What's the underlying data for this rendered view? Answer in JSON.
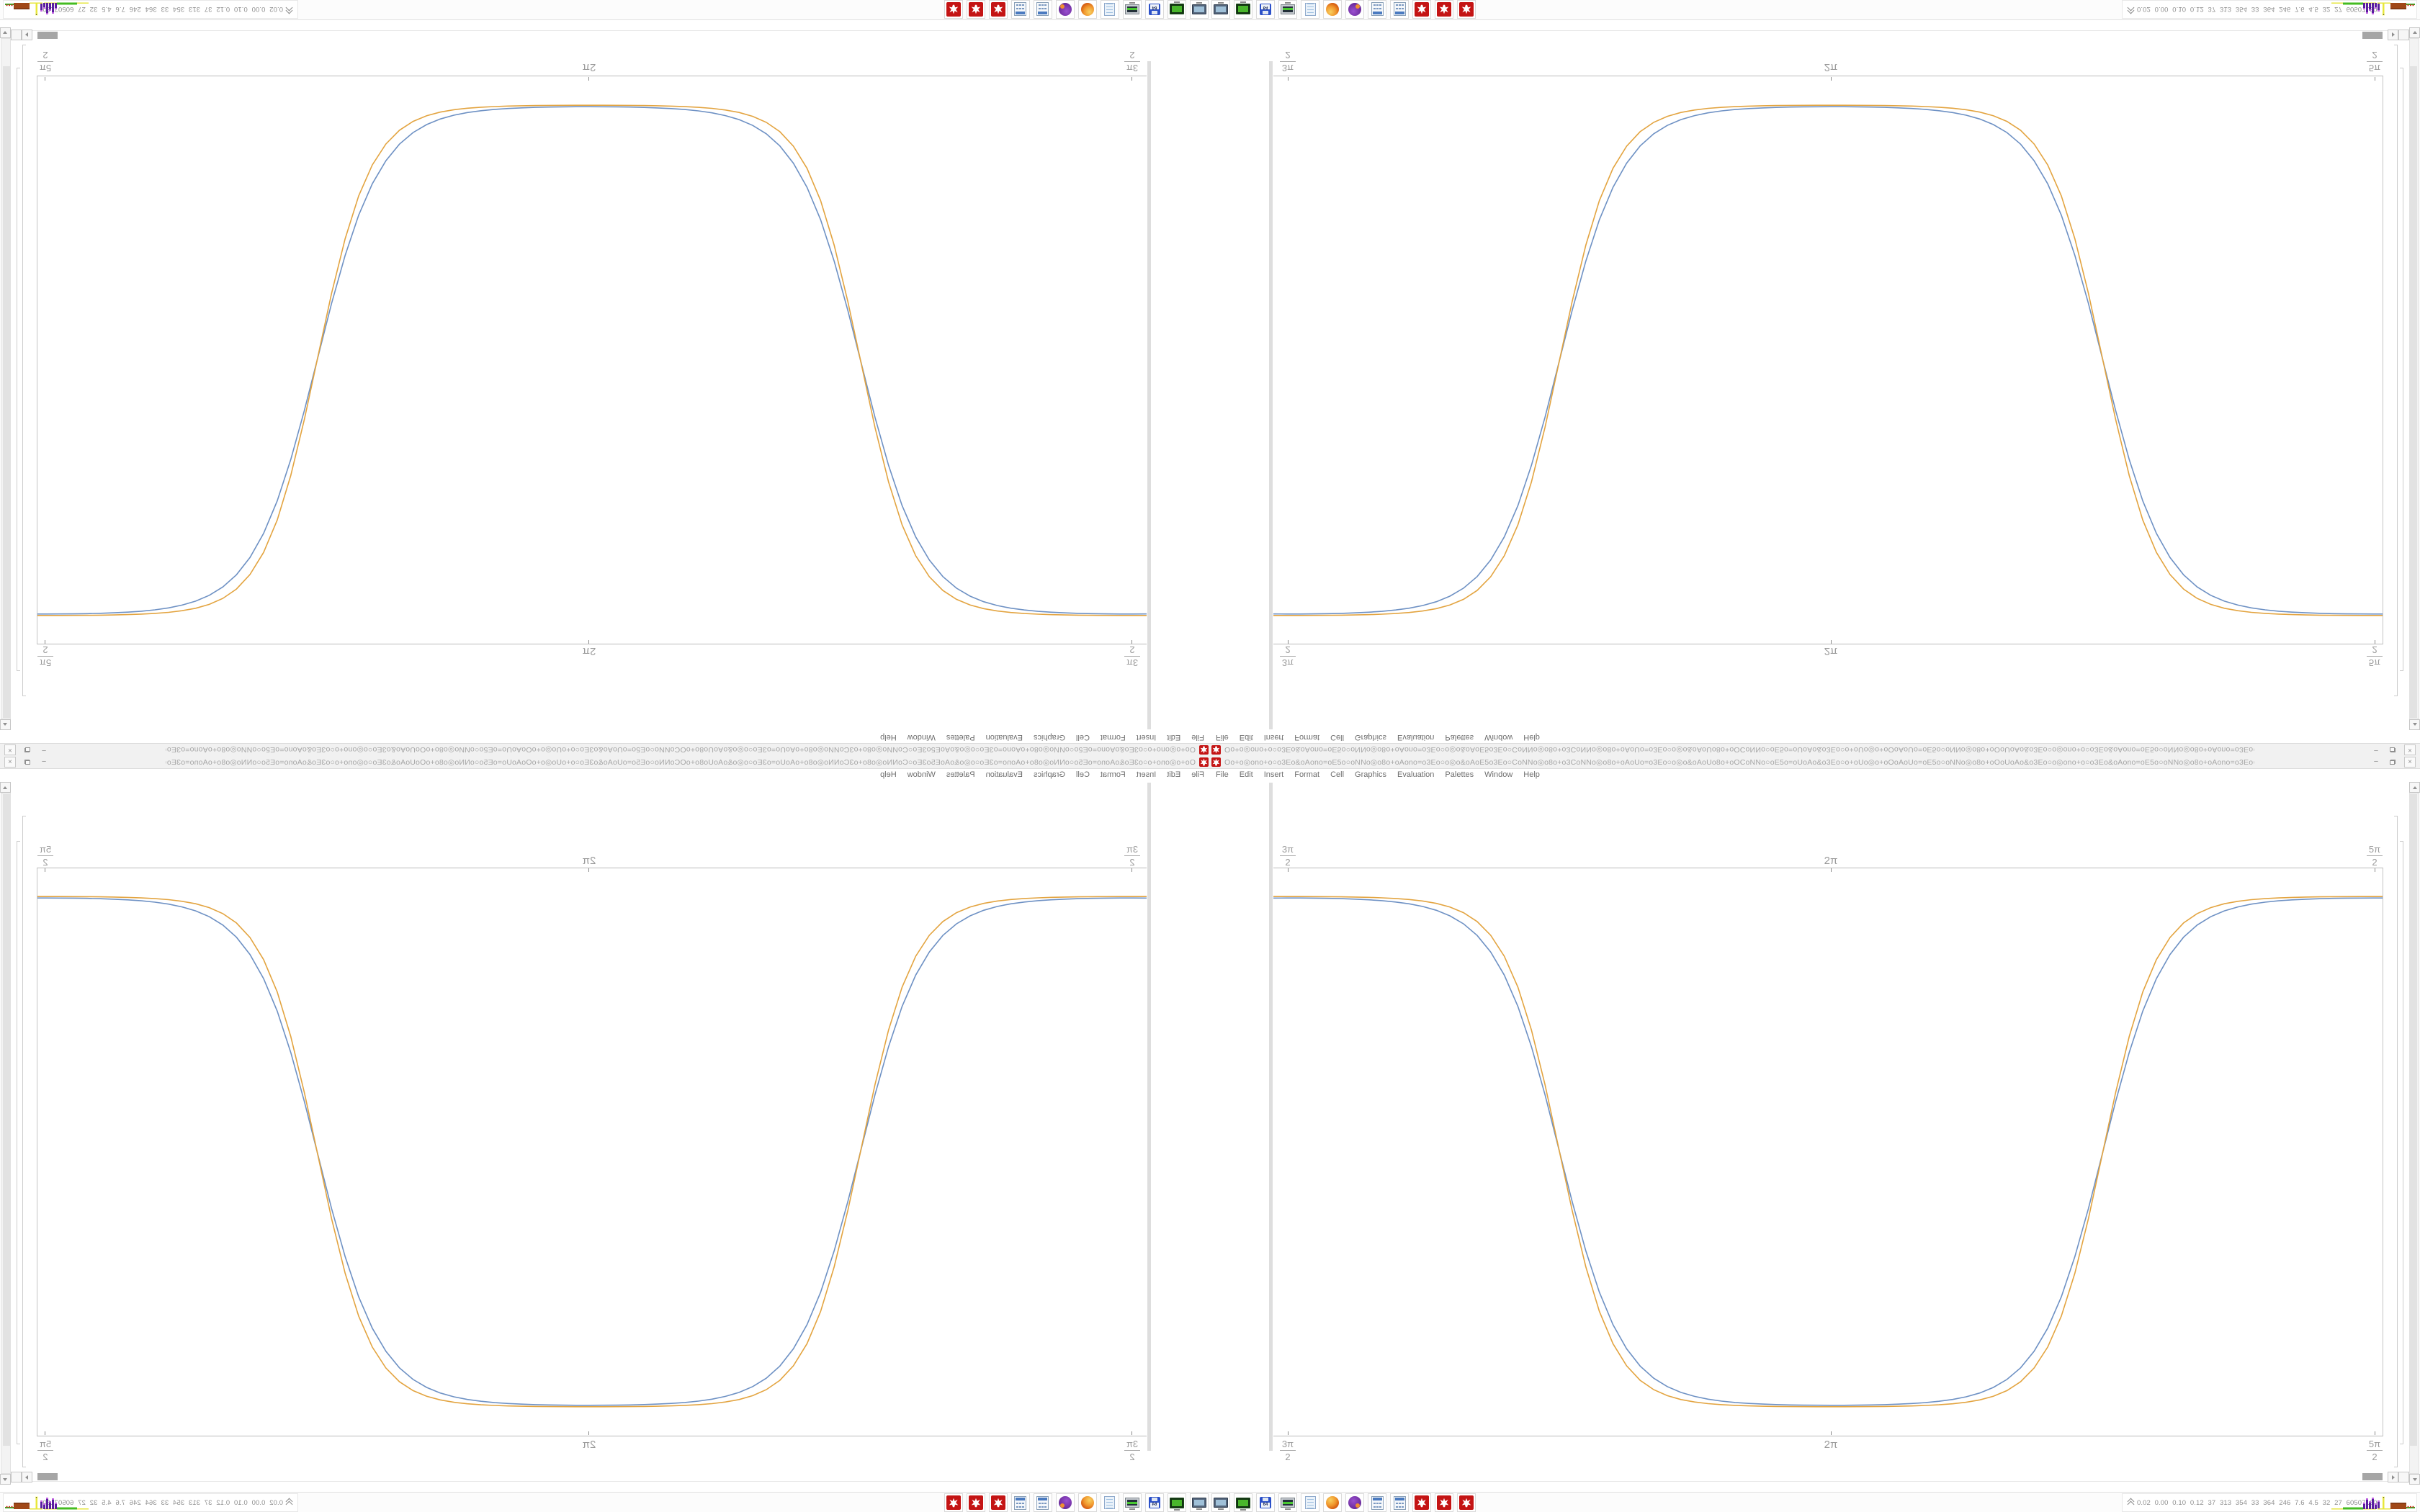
{
  "meta": {
    "description": "Wolfram Mathematica desktop screenshot; one 1680x1050 screen shown 4 times: bottom-right normal, bottom-left horizontally mirrored, top-right vertically mirrored, top-left rotated 180 degrees"
  },
  "window": {
    "title_gibberish": "Oo+o◎ono+o○o3Eo&oAono=oE5o○oNNo◎o8o+oAono=o3Eo○o◎o&oAoE5o3Eo○CoNNo◎o8o+o3CoNNo◎o8o+oAoUo=o3Eo○o◎o&oAoUo8o+oOCoNNo○oE5o=oUoAo&o3Eo○o+oUo◎o+oOoAoUo=oE5o○oNNo◎o8o+oOoUoAo&o3Eo○o◎ono+o○o3Eo&oAono=oE5o○oNNo◎o8o+oAono=o3Eo○o◎o&oAoE5o3Eo○CoNNo◎o8o+oO",
    "title_suffix": ".NB - Wolfram Mathematica 12.2",
    "buttons": [
      {
        "name": "minimize",
        "glyph": "−"
      },
      {
        "name": "restore",
        "glyph": "❐"
      },
      {
        "name": "close",
        "glyph": "×"
      }
    ]
  },
  "menu": {
    "items": [
      "File",
      "Edit",
      "Insert",
      "Format",
      "Cell",
      "Graphics",
      "Evaluation",
      "Palettes",
      "Window",
      "Help"
    ]
  },
  "chart_data": {
    "type": "line",
    "title": "",
    "xlabel": "",
    "ylabel": "",
    "frame": true,
    "grid": false,
    "legend": null,
    "x_range_pi": [
      1.4867,
      2.5133
    ],
    "x_ticks": [
      {
        "label": "3π/2",
        "position_pi": 1.5
      },
      {
        "label": "2π",
        "position_pi": 2.0
      },
      {
        "label": "5π/2",
        "position_pi": 2.5
      }
    ],
    "x_ticks_shown_on": [
      "top",
      "bottom"
    ],
    "y_range": [
      0,
      1
    ],
    "formula": "y = 1/(1+exp(k*cos(2x))) — smoothed square pulse, value 1 at x=3π/2 and 5π/2, value 0 at x=2π",
    "series": [
      {
        "name": "series-blue",
        "color": "#6E91C4",
        "k": 5.4
      },
      {
        "name": "series-gold",
        "color": "#E3A440",
        "k": 6.4
      }
    ],
    "note": "Two nearly-overlapping curves; plateaus at y=1 (edges) and y=0 (center); plot mirrored across all four screen quadrants"
  },
  "taskbar": {
    "icons": [
      {
        "name": "workspace-monitor-icon",
        "type": "monitor-dark"
      },
      {
        "name": "terminal-icon",
        "type": "terminal"
      },
      {
        "name": "floppy-disk-icon",
        "type": "floppy",
        "label": "64"
      },
      {
        "name": "system-monitor-icon",
        "type": "sysmon"
      },
      {
        "name": "notepad-icon",
        "type": "notepad"
      },
      {
        "name": "firefox-icon",
        "type": "firefox"
      },
      {
        "name": "purple-app-icon",
        "type": "purple"
      },
      {
        "name": "calculator-icon",
        "type": "calc"
      },
      {
        "name": "calculator-icon-2",
        "type": "calc"
      },
      {
        "name": "mathematica-icon-1",
        "type": "wolfram"
      },
      {
        "name": "mathematica-icon-2",
        "type": "wolfram"
      },
      {
        "name": "mathematica-icon-3",
        "type": "wolfram"
      }
    ]
  },
  "statusbar": {
    "expander": "^^",
    "values": "0.02 0.00 0.10 0.12 37 313 354 33 364 246 7.6 4.5 32 27 60507160",
    "sparkline": {
      "baseline_color": "#e6e63c",
      "green_line_color": "#44bb22",
      "purple_bar_color": "#5a1e9e",
      "purple_tip_color": "#c060e0",
      "spike_color": "#e8e83a",
      "spike_dot_color": "#ffff9a",
      "block_color": "#a04818",
      "dot_green_color": "#33aa22",
      "dot_red_color": "#cc3322",
      "purple_bars": [
        9,
        15,
        11,
        16,
        8,
        12
      ]
    }
  }
}
